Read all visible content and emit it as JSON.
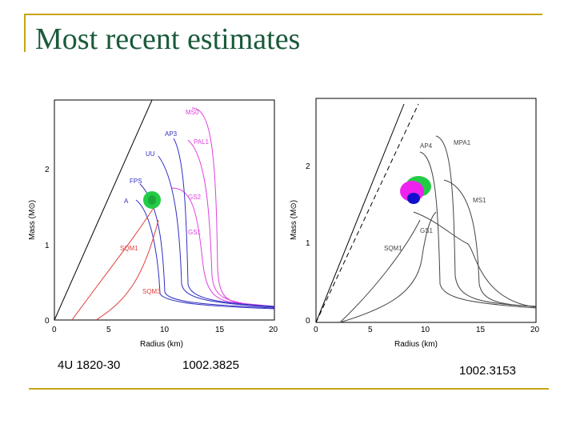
{
  "slide": {
    "title": "Most recent estimates",
    "captions": [
      "4U 1820-30",
      "1002.3825",
      "1002.3153"
    ]
  },
  "chart_data": [
    {
      "type": "line",
      "xlabel": "Radius (km)",
      "ylabel": "Mass (M⊙)",
      "xlim": [
        0,
        20
      ],
      "ylim": [
        0,
        2.9
      ],
      "xticks": [
        "0",
        "5",
        "10",
        "15",
        "20"
      ],
      "yticks": [
        "0",
        "1",
        "2"
      ],
      "curve_labels": [
        {
          "text": "MS0",
          "color": "#e040e0"
        },
        {
          "text": "AP3",
          "color": "#3030c0"
        },
        {
          "text": "PAL1",
          "color": "#e040e0"
        },
        {
          "text": "UU",
          "color": "#3030c0"
        },
        {
          "text": "FPS",
          "color": "#3030c0"
        },
        {
          "text": "GS2",
          "color": "#e040e0"
        },
        {
          "text": "A",
          "color": "#3030c0"
        },
        {
          "text": "GS1",
          "color": "#e040e0"
        },
        {
          "text": "SQM1",
          "color": "#e04040"
        },
        {
          "text": "SQM3",
          "color": "#e04040"
        }
      ],
      "measurement": {
        "radius_km": 9.2,
        "mass_msun": 1.58,
        "color": "#22cc44"
      }
    },
    {
      "type": "line",
      "xlabel": "Radius (km)",
      "ylabel": "Mass (M⊙)",
      "xlim": [
        0,
        20
      ],
      "ylim": [
        0,
        2.9
      ],
      "xticks": [
        "0",
        "5",
        "10",
        "15",
        "20"
      ],
      "yticks": [
        "0",
        "1",
        "2"
      ],
      "curve_labels": [
        {
          "text": "AP4",
          "color": "#444444"
        },
        {
          "text": "MPA1",
          "color": "#444444"
        },
        {
          "text": "MS1",
          "color": "#444444"
        },
        {
          "text": "GS1",
          "color": "#444444"
        },
        {
          "text": "SQM1",
          "color": "#444444"
        }
      ],
      "measurement": {
        "radius_km": 9.6,
        "mass_msun": 1.68,
        "color": "#ee22ee"
      }
    }
  ]
}
